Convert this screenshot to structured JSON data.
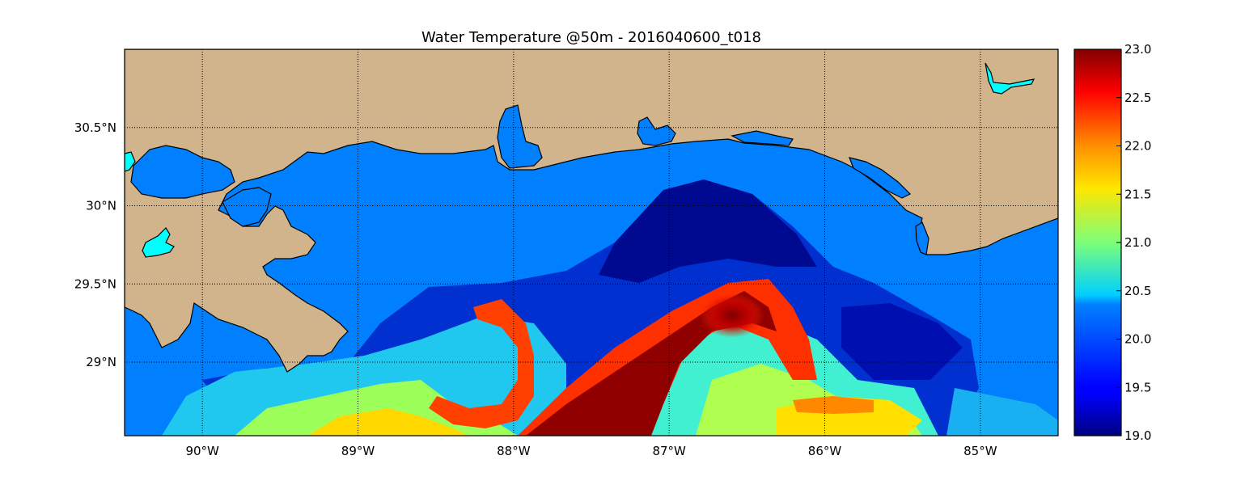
{
  "title": "Water Temperature @50m - 2016040600_t018",
  "map": {
    "lon_range": [
      -90.5,
      -84.5
    ],
    "lat_range": [
      28.53,
      31.0
    ],
    "lon_ticks": [
      {
        "value": -90,
        "label": "90°W"
      },
      {
        "value": -89,
        "label": "89°W"
      },
      {
        "value": -88,
        "label": "88°W"
      },
      {
        "value": -87,
        "label": "87°W"
      },
      {
        "value": -86,
        "label": "86°W"
      },
      {
        "value": -85,
        "label": "85°W"
      }
    ],
    "lat_ticks": [
      {
        "value": 30.5,
        "label": "30.5°N"
      },
      {
        "value": 30.0,
        "label": "30°N"
      },
      {
        "value": 29.5,
        "label": "29.5°N"
      },
      {
        "value": 29.0,
        "label": "29°N"
      }
    ],
    "grid": "dotted",
    "land_color": "#D2B48C",
    "water_color": "#0080FF",
    "lake_color": "#00FFFF"
  },
  "colorbar": {
    "min": 19.0,
    "max": 23.0,
    "colormap": "jet",
    "ticks": [
      "19.0",
      "19.5",
      "20.0",
      "20.5",
      "21.0",
      "21.5",
      "22.0",
      "22.5",
      "23.0"
    ]
  }
}
